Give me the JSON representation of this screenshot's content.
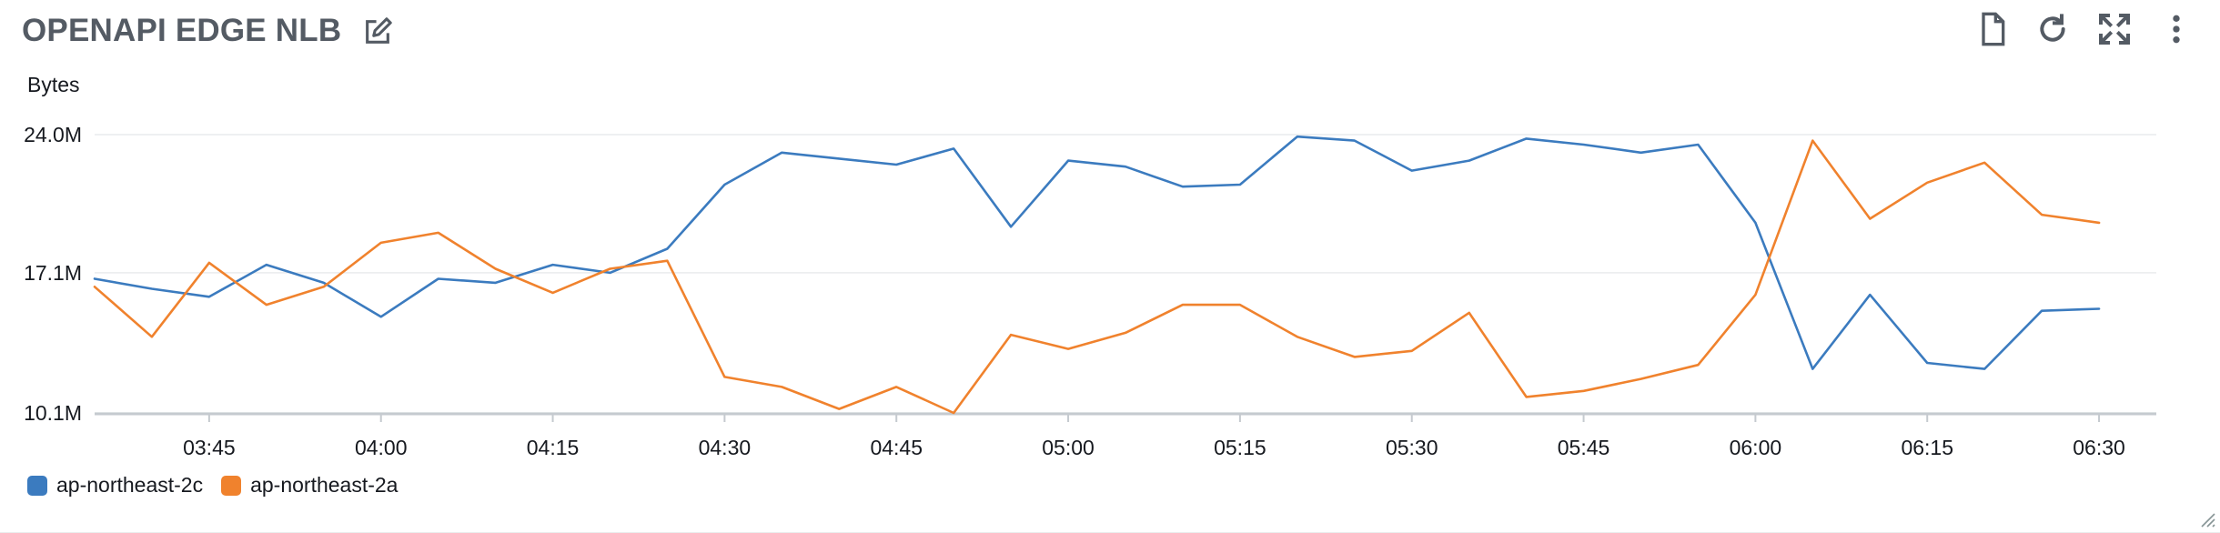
{
  "widget": {
    "title": "OPENAPI EDGE NLB",
    "icons": {
      "edit": "edit-icon",
      "document": "document-icon",
      "refresh": "refresh-icon",
      "expand": "expand-icon",
      "more": "more-vertical-icon",
      "resize": "resize-handle-icon"
    }
  },
  "chart_data": {
    "type": "line",
    "title": "OPENAPI EDGE NLB",
    "ylabel": "Bytes",
    "xlabel": "",
    "ylim_millions": [
      10.1,
      24.0
    ],
    "y_ticks": [
      {
        "value": 24.0,
        "label": "24.0M"
      },
      {
        "value": 17.1,
        "label": "17.1M"
      },
      {
        "value": 10.1,
        "label": "10.1M"
      }
    ],
    "x_ticks": [
      "03:45",
      "04:00",
      "04:15",
      "04:30",
      "04:45",
      "05:00",
      "05:15",
      "05:30",
      "05:45",
      "06:00",
      "06:15",
      "06:30"
    ],
    "x_range": [
      "03:35",
      "06:35"
    ],
    "grid": "horizontal",
    "legend_position": "bottom-left",
    "x": [
      "03:35",
      "03:40",
      "03:45",
      "03:50",
      "03:55",
      "04:00",
      "04:05",
      "04:10",
      "04:15",
      "04:20",
      "04:25",
      "04:30",
      "04:35",
      "04:40",
      "04:45",
      "04:50",
      "04:55",
      "05:00",
      "05:05",
      "05:10",
      "05:15",
      "05:20",
      "05:25",
      "05:30",
      "05:35",
      "05:40",
      "05:45",
      "05:50",
      "05:55",
      "06:00",
      "06:05",
      "06:10",
      "06:15",
      "06:20",
      "06:25",
      "06:30"
    ],
    "series": [
      {
        "name": "ap-northeast-2c",
        "color": "#3b7bbf",
        "values_millions": [
          16.8,
          16.3,
          15.9,
          17.5,
          16.6,
          14.9,
          16.8,
          16.6,
          17.5,
          17.1,
          18.3,
          21.5,
          23.1,
          22.8,
          22.5,
          23.3,
          19.4,
          22.7,
          22.4,
          21.4,
          21.5,
          23.9,
          23.7,
          22.2,
          22.7,
          23.8,
          23.5,
          23.1,
          23.5,
          19.6,
          12.3,
          16.0,
          12.6,
          12.3,
          15.2,
          15.3
        ]
      },
      {
        "name": "ap-northeast-2a",
        "color": "#f0822d",
        "values_millions": [
          16.4,
          13.9,
          17.6,
          15.5,
          16.4,
          18.6,
          19.1,
          17.3,
          16.1,
          17.3,
          17.7,
          11.9,
          11.4,
          10.3,
          11.4,
          10.1,
          14.0,
          13.3,
          14.1,
          15.5,
          15.5,
          13.9,
          12.9,
          13.2,
          15.1,
          10.9,
          11.2,
          11.8,
          12.5,
          16.0,
          23.7,
          19.8,
          21.6,
          22.6,
          20.0,
          19.6
        ]
      }
    ]
  }
}
